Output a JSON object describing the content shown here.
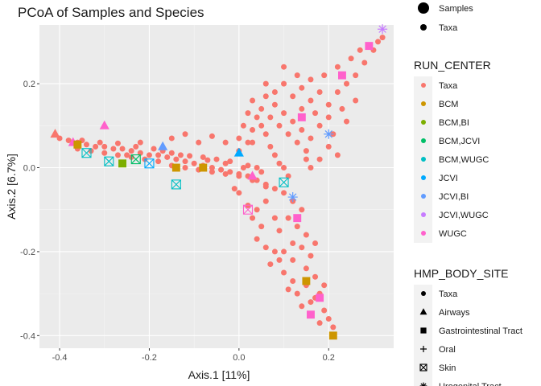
{
  "chart_data": {
    "type": "scatter",
    "title": "PCoA of Samples and Species",
    "xlabel": "Axis.1   [11%]",
    "ylabel": "Axis.2   [6.7%]",
    "xlim": [
      -0.445,
      0.345
    ],
    "ylim": [
      -0.43,
      0.34
    ],
    "x_ticks": [
      {
        "value": -0.4,
        "label": "-0.4"
      },
      {
        "value": -0.2,
        "label": "-0.2"
      },
      {
        "value": 0.0,
        "label": "0.0"
      },
      {
        "value": 0.2,
        "label": "0.2"
      }
    ],
    "y_ticks": [
      {
        "value": 0.2,
        "label": "0.2"
      },
      {
        "value": 0.0,
        "label": "0.0"
      },
      {
        "value": -0.2,
        "label": "-0.2"
      },
      {
        "value": -0.4,
        "label": "-0.4"
      }
    ],
    "grid": true,
    "legend_position": "right",
    "type_legend": {
      "items": [
        {
          "label": "Samples",
          "size": "large"
        },
        {
          "label": "Taxa",
          "size": "small"
        }
      ]
    },
    "color_legend": {
      "title": "RUN_CENTER",
      "items": [
        {
          "label": "Taxa",
          "color": "#F8766D"
        },
        {
          "label": "BCM",
          "color": "#CD9600"
        },
        {
          "label": "BCM,BI",
          "color": "#7CAE00"
        },
        {
          "label": "BCM,JCVI",
          "color": "#00BE67"
        },
        {
          "label": "BCM,WUGC",
          "color": "#00BFC4"
        },
        {
          "label": "JCVI",
          "color": "#00A9FF"
        },
        {
          "label": "JCVI,BI",
          "color": "#619CFF"
        },
        {
          "label": "JCVI,WUGC",
          "color": "#C77CFF"
        },
        {
          "label": "WUGC",
          "color": "#FF61CC"
        }
      ]
    },
    "shape_legend": {
      "title": "HMP_BODY_SITE",
      "items": [
        {
          "label": "Taxa",
          "shape": "dot"
        },
        {
          "label": "Airways",
          "shape": "triangle"
        },
        {
          "label": "Gastrointestinal Tract",
          "shape": "square"
        },
        {
          "label": "Oral",
          "shape": "plus"
        },
        {
          "label": "Skin",
          "shape": "boxed-x"
        },
        {
          "label": "Urogenital Tract",
          "shape": "asterisk"
        }
      ]
    },
    "series": [
      {
        "name": "Taxa",
        "color": "#F8766D",
        "shape": "dot",
        "points": [
          [
            -0.4,
            0.07
          ],
          [
            -0.38,
            0.065
          ],
          [
            -0.36,
            0.06
          ],
          [
            -0.34,
            0.055
          ],
          [
            -0.32,
            0.05
          ],
          [
            -0.3,
            0.05
          ],
          [
            -0.28,
            0.045
          ],
          [
            -0.26,
            0.045
          ],
          [
            -0.24,
            0.04
          ],
          [
            -0.22,
            0.035
          ],
          [
            -0.2,
            0.03
          ],
          [
            -0.18,
            0.03
          ],
          [
            -0.16,
            0.025
          ],
          [
            -0.14,
            0.02
          ],
          [
            -0.12,
            0.015
          ],
          [
            -0.1,
            0.01
          ],
          [
            -0.08,
            0.005
          ],
          [
            -0.06,
            0.0
          ],
          [
            -0.04,
            -0.005
          ],
          [
            -0.02,
            -0.01
          ],
          [
            0.0,
            -0.015
          ],
          [
            0.02,
            -0.02
          ],
          [
            0.04,
            -0.03
          ],
          [
            0.06,
            -0.04
          ],
          [
            0.08,
            -0.05
          ],
          [
            -0.36,
            0.045
          ],
          [
            -0.33,
            0.04
          ],
          [
            -0.3,
            0.035
          ],
          [
            -0.27,
            0.03
          ],
          [
            -0.24,
            0.025
          ],
          [
            -0.21,
            0.02
          ],
          [
            -0.18,
            0.015
          ],
          [
            -0.15,
            0.005
          ],
          [
            -0.12,
            0.0
          ],
          [
            -0.09,
            -0.005
          ],
          [
            -0.06,
            -0.01
          ],
          [
            -0.03,
            -0.015
          ],
          [
            0.0,
            -0.02
          ],
          [
            0.03,
            -0.03
          ],
          [
            0.06,
            -0.045
          ],
          [
            -0.35,
            0.065
          ],
          [
            -0.31,
            0.06
          ],
          [
            -0.27,
            0.058
          ],
          [
            -0.23,
            0.05
          ],
          [
            -0.19,
            0.045
          ],
          [
            -0.15,
            0.035
          ],
          [
            -0.11,
            0.028
          ],
          [
            -0.07,
            0.018
          ],
          [
            -0.03,
            0.01
          ],
          [
            0.01,
            0.0
          ],
          [
            0.05,
            -0.01
          ],
          [
            -0.25,
            0.03
          ],
          [
            -0.22,
            0.06
          ],
          [
            -0.17,
            0.04
          ],
          [
            -0.13,
            0.03
          ],
          [
            -0.08,
            0.025
          ],
          [
            -0.05,
            0.02
          ],
          [
            -0.02,
            0.015
          ],
          [
            0.02,
            0.005
          ],
          [
            0.04,
            0.0
          ],
          [
            -0.15,
            0.07
          ],
          [
            -0.12,
            0.08
          ],
          [
            -0.09,
            0.06
          ],
          [
            -0.06,
            0.075
          ],
          [
            -0.03,
            0.06
          ],
          [
            0.0,
            0.07
          ],
          [
            0.03,
            0.06
          ],
          [
            0.0,
            0.04
          ],
          [
            0.02,
            0.06
          ],
          [
            0.03,
            0.09
          ],
          [
            0.04,
            0.12
          ],
          [
            0.05,
            0.1
          ],
          [
            0.06,
            0.08
          ],
          [
            0.07,
            0.05
          ],
          [
            0.08,
            0.03
          ],
          [
            0.09,
            0.01
          ],
          [
            0.1,
            0.0
          ],
          [
            0.11,
            -0.02
          ],
          [
            0.01,
            0.1
          ],
          [
            0.02,
            0.13
          ],
          [
            0.03,
            0.16
          ],
          [
            0.05,
            0.14
          ],
          [
            0.06,
            0.17
          ],
          [
            0.07,
            0.12
          ],
          [
            0.08,
            0.15
          ],
          [
            0.09,
            0.1
          ],
          [
            0.1,
            0.13
          ],
          [
            0.11,
            0.08
          ],
          [
            0.12,
            0.11
          ],
          [
            0.13,
            0.06
          ],
          [
            0.14,
            0.09
          ],
          [
            0.15,
            0.04
          ],
          [
            0.16,
            0.07
          ],
          [
            0.06,
            0.2
          ],
          [
            0.08,
            0.18
          ],
          [
            0.1,
            0.2
          ],
          [
            0.12,
            0.17
          ],
          [
            0.14,
            0.19
          ],
          [
            0.16,
            0.16
          ],
          [
            0.18,
            0.18
          ],
          [
            0.2,
            0.15
          ],
          [
            0.22,
            0.18
          ],
          [
            0.24,
            0.2
          ],
          [
            0.26,
            0.22
          ],
          [
            0.28,
            0.25
          ],
          [
            0.3,
            0.28
          ],
          [
            0.31,
            0.3
          ],
          [
            0.32,
            0.31
          ],
          [
            0.1,
            0.24
          ],
          [
            0.13,
            0.22
          ],
          [
            0.16,
            0.21
          ],
          [
            0.19,
            0.22
          ],
          [
            0.22,
            0.24
          ],
          [
            0.25,
            0.26
          ],
          [
            0.27,
            0.28
          ],
          [
            0.29,
            0.29
          ],
          [
            0.14,
            0.14
          ],
          [
            0.17,
            0.13
          ],
          [
            0.2,
            0.12
          ],
          [
            0.23,
            0.14
          ],
          [
            0.26,
            0.16
          ],
          [
            0.18,
            0.1
          ],
          [
            0.21,
            0.08
          ],
          [
            0.24,
            0.11
          ],
          [
            0.2,
            0.05
          ],
          [
            0.22,
            0.03
          ],
          [
            0.18,
            0.02
          ],
          [
            0.16,
            0.0
          ],
          [
            0.15,
            0.02
          ],
          [
            0.1,
            -0.06
          ],
          [
            0.12,
            -0.08
          ],
          [
            0.14,
            -0.1
          ],
          [
            0.11,
            -0.12
          ],
          [
            0.13,
            -0.14
          ],
          [
            0.15,
            -0.16
          ],
          [
            0.17,
            -0.18
          ],
          [
            0.14,
            -0.19
          ],
          [
            0.16,
            -0.21
          ],
          [
            0.15,
            -0.24
          ],
          [
            0.17,
            -0.26
          ],
          [
            0.19,
            -0.28
          ],
          [
            0.18,
            -0.3
          ],
          [
            0.16,
            -0.32
          ],
          [
            0.19,
            -0.34
          ],
          [
            0.2,
            -0.36
          ],
          [
            0.21,
            -0.38
          ],
          [
            0.06,
            -0.08
          ],
          [
            0.04,
            -0.1
          ],
          [
            0.03,
            -0.12
          ],
          [
            0.05,
            -0.14
          ],
          [
            0.04,
            -0.17
          ],
          [
            0.06,
            -0.19
          ],
          [
            0.08,
            -0.2
          ],
          [
            0.07,
            -0.23
          ],
          [
            0.09,
            -0.22
          ],
          [
            0.1,
            -0.25
          ],
          [
            0.12,
            -0.27
          ],
          [
            0.11,
            -0.29
          ],
          [
            0.13,
            -0.3
          ],
          [
            0.14,
            -0.33
          ],
          [
            0.16,
            -0.35
          ],
          [
            0.18,
            -0.37
          ],
          [
            0.0,
            -0.06
          ],
          [
            0.02,
            -0.09
          ],
          [
            -0.01,
            -0.05
          ],
          [
            0.08,
            -0.12
          ],
          [
            0.09,
            -0.15
          ],
          [
            0.12,
            -0.18
          ],
          [
            0.1,
            -0.2
          ],
          [
            0.12,
            -0.22
          ],
          [
            0.15,
            -0.28
          ],
          [
            0.17,
            -0.31
          ]
        ]
      },
      {
        "name": "Samples",
        "color": "#FF61CC",
        "shape": "mixed",
        "points": [
          [
            -0.41,
            0.08,
            "triangle",
            "#F8766D"
          ],
          [
            -0.37,
            0.06,
            "triangle",
            "#FF61CC"
          ],
          [
            -0.3,
            0.1,
            "triangle",
            "#FF61CC"
          ],
          [
            -0.17,
            0.05,
            "triangle",
            "#619CFF"
          ],
          [
            0.0,
            0.035,
            "triangle",
            "#00A9FF"
          ],
          [
            0.03,
            -0.02,
            "triangle",
            "#FF61CC"
          ],
          [
            -0.36,
            0.055,
            "square",
            "#CD9600"
          ],
          [
            -0.14,
            -0.04,
            "boxed-x",
            "#00BFC4"
          ],
          [
            -0.34,
            0.035,
            "boxed-x",
            "#00BFC4"
          ],
          [
            -0.29,
            0.015,
            "boxed-x",
            "#00BFC4"
          ],
          [
            -0.14,
            0.0,
            "square",
            "#CD9600"
          ],
          [
            0.02,
            -0.1,
            "boxed-x",
            "#FF61CC"
          ],
          [
            0.1,
            -0.035,
            "boxed-x",
            "#00BFC4"
          ],
          [
            0.13,
            -0.12,
            "square",
            "#FF61CC"
          ],
          [
            0.21,
            -0.4,
            "square",
            "#CD9600"
          ],
          [
            0.18,
            -0.31,
            "square",
            "#FF61CC"
          ],
          [
            0.15,
            -0.27,
            "square",
            "#CD9600"
          ],
          [
            0.16,
            -0.35,
            "square",
            "#FF61CC"
          ],
          [
            0.32,
            0.33,
            "asterisk",
            "#C77CFF"
          ],
          [
            0.12,
            -0.07,
            "asterisk",
            "#619CFF"
          ],
          [
            0.2,
            0.08,
            "asterisk",
            "#619CFF"
          ],
          [
            -0.23,
            0.02,
            "boxed-x",
            "#00BE67"
          ],
          [
            -0.2,
            0.01,
            "boxed-x",
            "#00A9FF"
          ],
          [
            -0.26,
            0.01,
            "square",
            "#7CAE00"
          ],
          [
            -0.08,
            0.0,
            "square",
            "#CD9600"
          ],
          [
            0.23,
            0.22,
            "square",
            "#FF61CC"
          ],
          [
            0.29,
            0.29,
            "square",
            "#FF61CC"
          ],
          [
            0.14,
            0.12,
            "square",
            "#FF61CC"
          ]
        ]
      }
    ]
  }
}
